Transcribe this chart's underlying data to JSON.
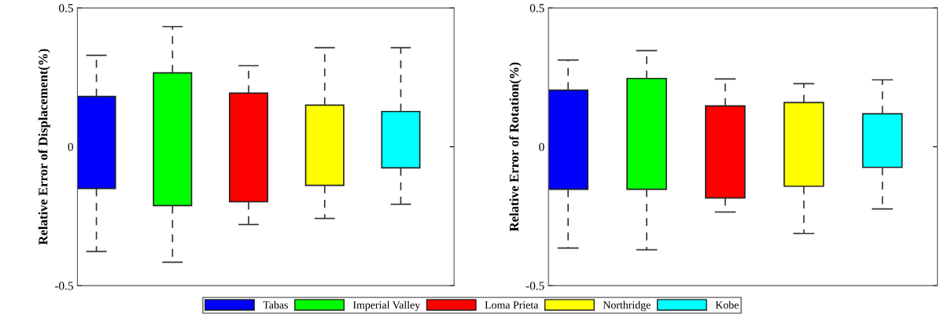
{
  "chart_data": [
    {
      "type": "box",
      "ylabel": "Relative Error of Displacement(%)",
      "categories": [
        null,
        null,
        null,
        null,
        null
      ],
      "ylim": [
        -0.5,
        0.5
      ],
      "yticks": [
        {
          "value": -0.5,
          "label": "-0.5"
        },
        0,
        0.5
      ],
      "grid": false,
      "legend": "bottom",
      "line_style": "dashed",
      "series": [
        {
          "name": "Tabas",
          "color": "#0000ff",
          "boxes": [
            {
              "low": -0.377,
              "q1": -0.15,
              "q3": 0.181,
              "high": 0.329
            },
            null,
            null,
            null,
            null
          ]
        },
        {
          "name": "Imperial Valley",
          "color": "#00ff00",
          "boxes": [
            null,
            {
              "low": -0.416,
              "q1": -0.212,
              "q3": 0.266,
              "high": 0.433
            },
            null,
            null,
            null
          ]
        },
        {
          "name": "Loma Prieta",
          "color": "#ff0000",
          "boxes": [
            null,
            null,
            {
              "low": -0.28,
              "q1": -0.198,
              "q3": 0.193,
              "high": 0.292
            },
            null,
            null
          ]
        },
        {
          "name": "Northridge",
          "color": "#ffff00",
          "boxes": [
            null,
            null,
            null,
            {
              "low": -0.258,
              "q1": -0.139,
              "q3": 0.15,
              "high": 0.357
            },
            null
          ]
        },
        {
          "name": "Kobe",
          "color": "#00ffff",
          "boxes": [
            null,
            null,
            null,
            null,
            {
              "low": -0.207,
              "q1": -0.076,
              "q3": 0.127,
              "high": 0.357
            }
          ]
        }
      ]
    },
    {
      "type": "box",
      "ylabel": "Relative Error of Rotation(%)",
      "categories": [
        null,
        null,
        null,
        null,
        null
      ],
      "ylim": [
        -0.5,
        0.5
      ],
      "yticks": [
        {
          "value": -0.5,
          "label": "-0.5"
        },
        0,
        0.5
      ],
      "grid": false,
      "line_style": "dashed",
      "series": [
        {
          "color": "#0000ff",
          "boxes": [
            {
              "low": -0.365,
              "q1": -0.153,
              "q3": 0.204,
              "high": 0.312
            },
            null,
            null,
            null,
            null
          ]
        },
        {
          "color": "#00ff00",
          "boxes": [
            null,
            {
              "low": -0.371,
              "q1": -0.153,
              "q3": 0.246,
              "high": 0.346
            },
            null,
            null,
            null
          ]
        },
        {
          "color": "#ff0000",
          "boxes": [
            null,
            null,
            {
              "low": -0.235,
              "q1": -0.184,
              "q3": 0.147,
              "high": 0.244
            },
            null,
            null
          ]
        },
        {
          "color": "#ffff00",
          "boxes": [
            null,
            null,
            null,
            {
              "low": -0.312,
              "q1": -0.142,
              "q3": 0.159,
              "high": 0.227
            },
            null
          ]
        },
        {
          "color": "#00ffff",
          "boxes": [
            null,
            null,
            null,
            null,
            {
              "low": -0.224,
              "q1": -0.074,
              "q3": 0.119,
              "high": 0.241
            }
          ]
        }
      ]
    }
  ]
}
